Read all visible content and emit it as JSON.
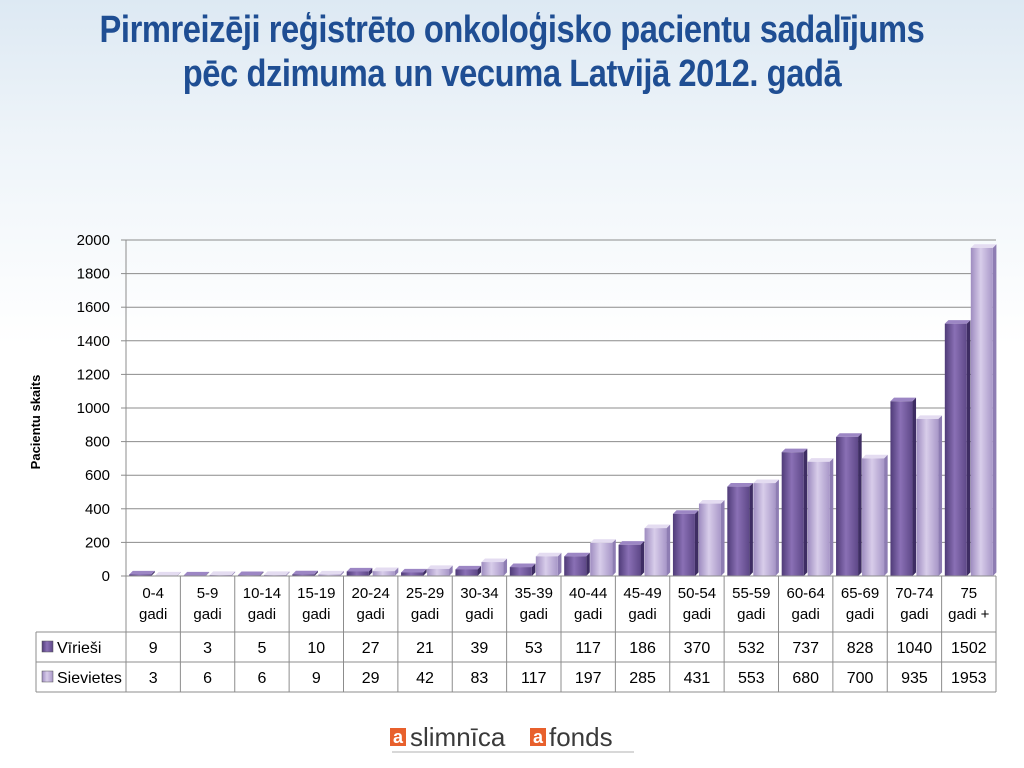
{
  "title": {
    "line1": "Pirmreizēji reģistrēto onkoloģisko pacientu sadalījums",
    "line2": "pēc dzimuma un vecuma Latvijā 2012. gadā"
  },
  "logo": {
    "text1": "slimnīca",
    "text2": "fonds",
    "letter": "a"
  },
  "colors": {
    "title": "#1f4e93",
    "male": "#7a5fa3",
    "female": "#b7a7d3"
  },
  "chart_data": {
    "type": "bar",
    "ylabel": "Pacientu skaits",
    "ylim": [
      0,
      2000
    ],
    "yticks": [
      0,
      200,
      400,
      600,
      800,
      1000,
      1200,
      1400,
      1600,
      1800,
      2000
    ],
    "grid": true,
    "categories": [
      [
        "0-4",
        "gadi"
      ],
      [
        "5-9",
        "gadi"
      ],
      [
        "10-14",
        "gadi"
      ],
      [
        "15-19",
        "gadi"
      ],
      [
        "20-24",
        "gadi"
      ],
      [
        "25-29",
        "gadi"
      ],
      [
        "30-34",
        "gadi"
      ],
      [
        "35-39",
        "gadi"
      ],
      [
        "40-44",
        "gadi"
      ],
      [
        "45-49",
        "gadi"
      ],
      [
        "50-54",
        "gadi"
      ],
      [
        "55-59",
        "gadi"
      ],
      [
        "60-64",
        "gadi"
      ],
      [
        "65-69",
        "gadi"
      ],
      [
        "70-74",
        "gadi"
      ],
      [
        "75",
        "gadi +"
      ]
    ],
    "series": [
      {
        "name": "Vīrieši",
        "values": [
          9,
          3,
          5,
          10,
          27,
          21,
          39,
          53,
          117,
          186,
          370,
          532,
          737,
          828,
          1040,
          1502
        ]
      },
      {
        "name": "Sievietes",
        "values": [
          3,
          6,
          6,
          9,
          29,
          42,
          83,
          117,
          197,
          285,
          431,
          553,
          680,
          700,
          935,
          1953
        ]
      }
    ],
    "legend": "data-table"
  }
}
